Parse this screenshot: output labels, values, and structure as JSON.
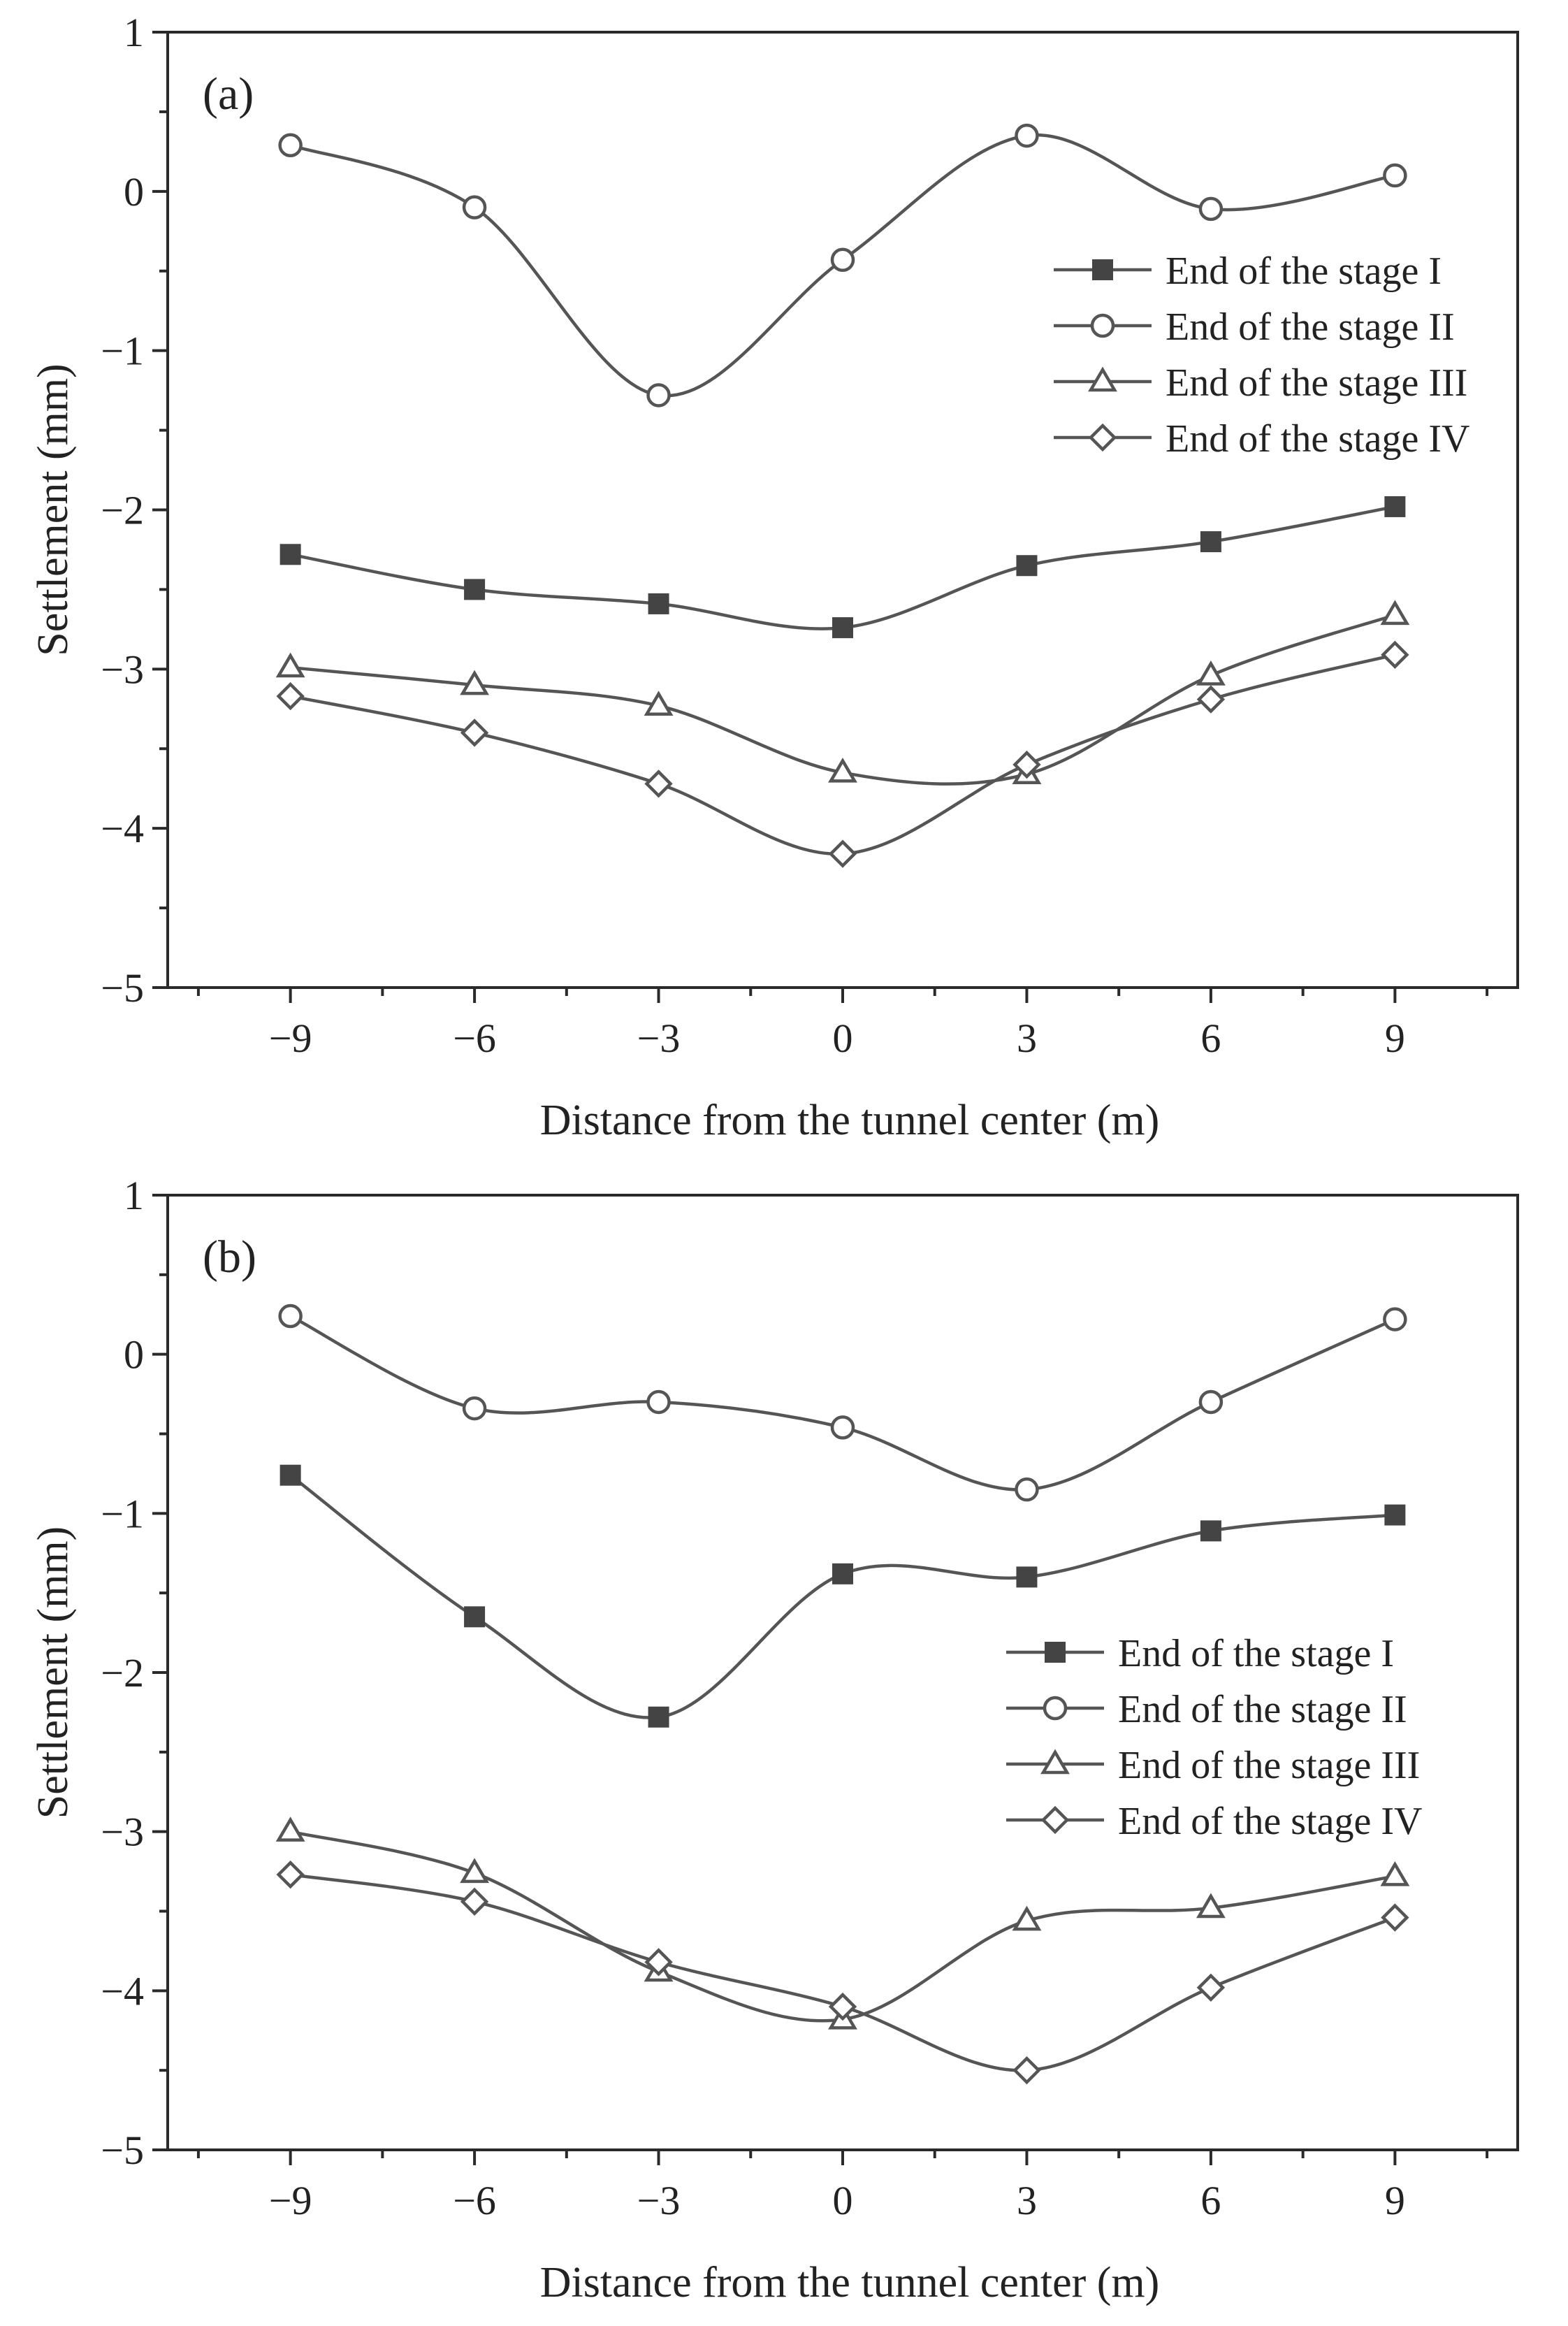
{
  "chart_data": [
    {
      "type": "line",
      "panel_label": "(a)",
      "xlabel": "Distance from the tunnel center (m)",
      "ylabel": "Settlement (mm)",
      "xlim": [
        -11,
        11
      ],
      "ylim": [
        -5,
        1
      ],
      "x": [
        -9,
        -6,
        -3,
        0,
        3,
        6,
        9
      ],
      "xticks": [
        "−9",
        "−6",
        "−3",
        "0",
        "3",
        "6",
        "9"
      ],
      "yticks": [
        "1",
        "0",
        "−1",
        "−2",
        "−3",
        "−4",
        "−5"
      ],
      "legend_position": "upper-right",
      "series": [
        {
          "name": "End of the stage I",
          "marker": "filled-square",
          "values": [
            -2.28,
            -2.5,
            -2.59,
            -2.74,
            -2.35,
            -2.2,
            -1.98
          ]
        },
        {
          "name": "End of the stage II",
          "marker": "open-circle",
          "values": [
            0.29,
            -0.1,
            -1.28,
            -0.43,
            0.35,
            -0.11,
            0.1
          ]
        },
        {
          "name": "End of the stage III",
          "marker": "open-triangle",
          "values": [
            -2.99,
            -3.1,
            -3.23,
            -3.65,
            -3.66,
            -3.04,
            -2.66
          ]
        },
        {
          "name": "End of the stage IV",
          "marker": "open-diamond",
          "values": [
            -3.17,
            -3.4,
            -3.72,
            -4.16,
            -3.6,
            -3.19,
            -2.91
          ]
        }
      ]
    },
    {
      "type": "line",
      "panel_label": "(b)",
      "xlabel": "Distance from the tunnel center (m)",
      "ylabel": "Settlement (mm)",
      "xlim": [
        -11,
        11
      ],
      "ylim": [
        -5,
        1
      ],
      "x": [
        -9,
        -6,
        -3,
        0,
        3,
        6,
        9
      ],
      "xticks": [
        "−9",
        "−6",
        "−3",
        "0",
        "3",
        "6",
        "9"
      ],
      "yticks": [
        "1",
        "0",
        "−1",
        "−2",
        "−3",
        "−4",
        "−5"
      ],
      "legend_position": "right",
      "series": [
        {
          "name": "End of the stage I",
          "marker": "filled-square",
          "values": [
            -0.76,
            -1.65,
            -2.28,
            -1.38,
            -1.4,
            -1.11,
            -1.01
          ]
        },
        {
          "name": "End of the stage II",
          "marker": "open-circle",
          "values": [
            0.24,
            -0.34,
            -0.3,
            -0.46,
            -0.85,
            -0.3,
            0.22
          ]
        },
        {
          "name": "End of the stage III",
          "marker": "open-triangle",
          "values": [
            -3.0,
            -3.26,
            -3.88,
            -4.18,
            -3.56,
            -3.48,
            -3.28
          ]
        },
        {
          "name": "End of the stage IV",
          "marker": "open-diamond",
          "values": [
            -3.27,
            -3.44,
            -3.82,
            -4.1,
            -4.5,
            -3.98,
            -3.54
          ]
        }
      ]
    }
  ]
}
